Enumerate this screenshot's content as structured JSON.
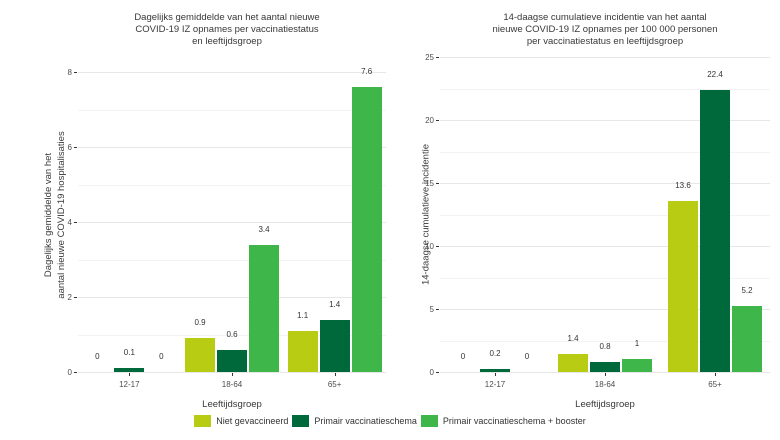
{
  "legend": {
    "items": [
      {
        "label": "Niet gevaccineerd",
        "color": "#b9cc14"
      },
      {
        "label": "Primair vaccinatieschema",
        "color": "#00693c"
      },
      {
        "label": "Primair vaccinatieschema + booster",
        "color": "#3eb64a"
      }
    ]
  },
  "chart_data": [
    {
      "type": "bar",
      "title_lines": [
        "Dagelijks gemiddelde van het aantal nieuwe",
        "COVID-19 IZ opnames per vaccinatiestatus",
        "en leeftijdsgroep"
      ],
      "ylabel_lines": [
        "Dagelijks gemiddelde van het",
        "aantal nieuwe COVID-19 hospitalisaties"
      ],
      "xlabel": "Leeftijdsgroep",
      "categories": [
        "12-17",
        "18-64",
        "65+"
      ],
      "series": [
        {
          "name": "Niet gevaccineerd",
          "values": [
            0,
            0.9,
            1.1
          ],
          "labels": [
            "0",
            "0.9",
            "1.1"
          ]
        },
        {
          "name": "Primair vaccinatieschema",
          "values": [
            0.1,
            0.6,
            1.4
          ],
          "labels": [
            "0.1",
            "0.6",
            "1.4"
          ]
        },
        {
          "name": "Primair vaccinatieschema + booster",
          "values": [
            0,
            3.4,
            7.6
          ],
          "labels": [
            "0",
            "3.4",
            "7.6"
          ]
        }
      ],
      "ylim": [
        0,
        8
      ],
      "yticks": [
        0,
        2,
        4,
        6,
        8
      ],
      "yticks_minor": [
        1,
        3,
        5,
        7
      ],
      "grid": true,
      "legend_position": "bottom"
    },
    {
      "type": "bar",
      "title_lines": [
        "14-daagse cumulatieve incidentie van het aantal",
        "nieuwe COVID-19 IZ opnames per 100 000 personen",
        "per vaccinatiestatus en leeftijdsgroep"
      ],
      "ylabel_lines": [
        "14-daagse cumulatieve incidentie"
      ],
      "xlabel": "Leeftijdsgroep",
      "categories": [
        "12-17",
        "18-64",
        "65+"
      ],
      "series": [
        {
          "name": "Niet gevaccineerd",
          "values": [
            0,
            1.4,
            13.6
          ],
          "labels": [
            "0",
            "1.4",
            "13.6"
          ]
        },
        {
          "name": "Primair vaccinatieschema",
          "values": [
            0.2,
            0.8,
            22.4
          ],
          "labels": [
            "0.2",
            "0.8",
            "22.4"
          ]
        },
        {
          "name": "Primair vaccinatieschema + booster",
          "values": [
            0,
            1,
            5.2
          ],
          "labels": [
            "0",
            "1",
            "5.2"
          ]
        }
      ],
      "ylim": [
        0,
        25
      ],
      "yticks": [
        0,
        5,
        10,
        15,
        20,
        25
      ],
      "yticks_minor": [
        2.5,
        7.5,
        12.5,
        17.5,
        22.5
      ],
      "grid": true,
      "legend_position": "bottom"
    }
  ]
}
